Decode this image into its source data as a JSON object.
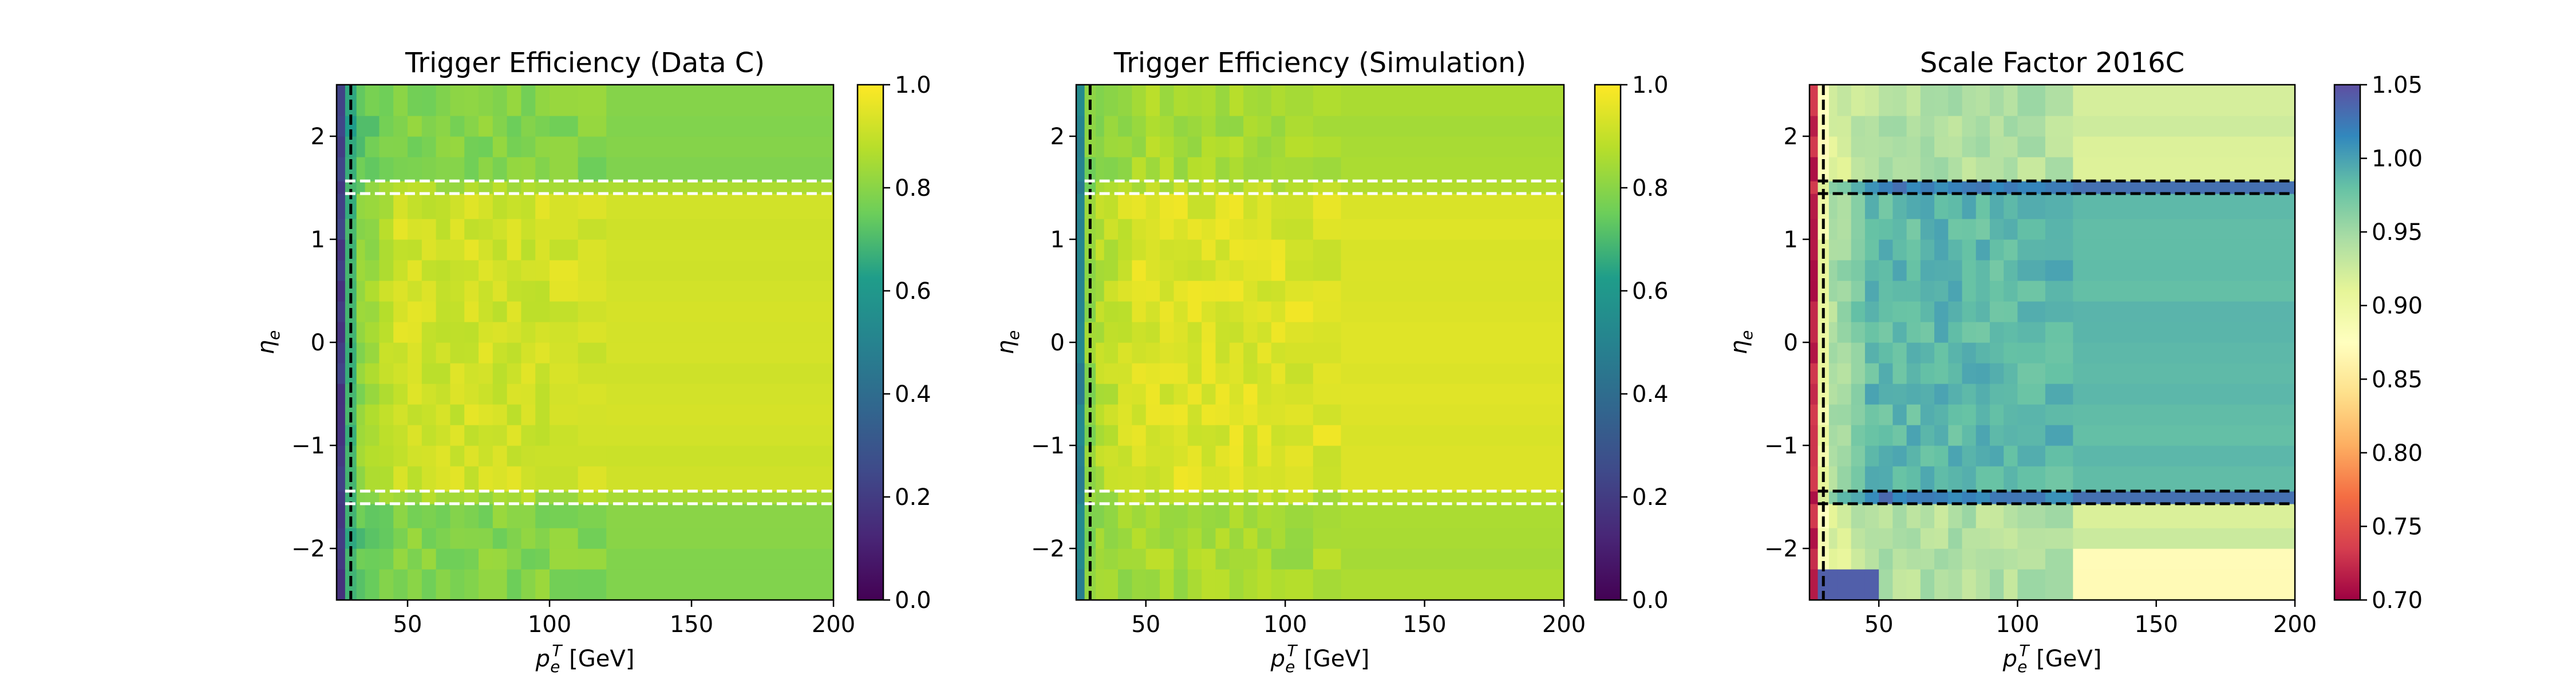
{
  "chart_data": [
    {
      "type": "heatmap",
      "title": "Trigger Efficiency (Data C)",
      "xlabel": "p_e^T [GeV]",
      "ylabel": "η_e",
      "xlim": [
        25,
        200
      ],
      "ylim": [
        -2.5,
        2.5
      ],
      "x_ticks": [
        "50",
        "100",
        "150",
        "200"
      ],
      "y_ticks": [
        "−2",
        "−1",
        "0",
        "1",
        "2"
      ],
      "colormap": "viridis",
      "colorbar": {
        "range": [
          0.0,
          1.0
        ],
        "ticks": [
          "0.0",
          "0.2",
          "0.4",
          "0.6",
          "0.8",
          "1.0"
        ]
      },
      "x_bin_edges": [
        25,
        28,
        32,
        35,
        40,
        45,
        50,
        55,
        60,
        65,
        70,
        75,
        80,
        85,
        90,
        95,
        100,
        110,
        120,
        200
      ],
      "eta_bin_edges": [
        -2.5,
        -2.2,
        -2.0,
        -1.8,
        -1.566,
        -1.444,
        -1.2,
        -1.0,
        -0.8,
        -0.6,
        -0.4,
        -0.2,
        0.0,
        0.2,
        0.4,
        0.6,
        0.8,
        1.0,
        1.2,
        1.444,
        1.566,
        1.8,
        2.0,
        2.2,
        2.5
      ],
      "region_efficiency": {
        "low_pt_column": 0.2,
        "turn_on": 0.6,
        "endcap": 0.79,
        "gap": 0.85,
        "barrel": 0.92
      },
      "dashed_lines": {
        "x": [
          30
        ],
        "eta": [
          -1.566,
          -1.444,
          1.444,
          1.566
        ],
        "colors": [
          "#000000",
          "#ffffff"
        ]
      }
    },
    {
      "type": "heatmap",
      "title": "Trigger Efficiency (Simulation)",
      "xlabel": "p_e^T [GeV]",
      "ylabel": "η_e",
      "xlim": [
        25,
        200
      ],
      "ylim": [
        -2.5,
        2.5
      ],
      "x_ticks": [
        "50",
        "100",
        "150",
        "200"
      ],
      "y_ticks": [
        "−2",
        "−1",
        "0",
        "1",
        "2"
      ],
      "colormap": "viridis",
      "colorbar": {
        "range": [
          0.0,
          1.0
        ],
        "ticks": [
          "0.0",
          "0.2",
          "0.4",
          "0.6",
          "0.8",
          "1.0"
        ]
      },
      "x_bin_edges": [
        25,
        28,
        32,
        35,
        40,
        45,
        50,
        55,
        60,
        65,
        70,
        75,
        80,
        85,
        90,
        95,
        100,
        110,
        120,
        200
      ],
      "eta_bin_edges": [
        -2.5,
        -2.2,
        -2.0,
        -1.8,
        -1.566,
        -1.444,
        -1.2,
        -1.0,
        -0.8,
        -0.6,
        -0.4,
        -0.2,
        0.0,
        0.2,
        0.4,
        0.6,
        0.8,
        1.0,
        1.2,
        1.444,
        1.566,
        1.8,
        2.0,
        2.2,
        2.5
      ],
      "region_efficiency": {
        "low_pt_column": 0.5,
        "turn_on": 0.75,
        "endcap": 0.85,
        "gap": 0.88,
        "barrel": 0.94
      },
      "dashed_lines": {
        "x": [
          30
        ],
        "eta": [
          -1.566,
          -1.444,
          1.444,
          1.566
        ],
        "colors": [
          "#000000",
          "#ffffff"
        ]
      }
    },
    {
      "type": "heatmap",
      "title": "Scale Factor 2016C",
      "xlabel": "p_e^T [GeV]",
      "ylabel": "η_e",
      "xlim": [
        25,
        200
      ],
      "ylim": [
        -2.5,
        2.5
      ],
      "x_ticks": [
        "50",
        "100",
        "150",
        "200"
      ],
      "y_ticks": [
        "−2",
        "−1",
        "0",
        "1",
        "2"
      ],
      "colormap": "Spectral",
      "colorbar": {
        "range": [
          0.7,
          1.05
        ],
        "ticks": [
          "0.70",
          "0.75",
          "0.80",
          "0.85",
          "0.90",
          "0.95",
          "1.00",
          "1.05"
        ]
      },
      "x_bin_edges": [
        25,
        28,
        32,
        35,
        40,
        45,
        50,
        55,
        60,
        65,
        70,
        75,
        80,
        85,
        90,
        95,
        100,
        110,
        120,
        200
      ],
      "eta_bin_edges": [
        -2.5,
        -2.2,
        -2.0,
        -1.8,
        -1.566,
        -1.444,
        -1.2,
        -1.0,
        -0.8,
        -0.6,
        -0.4,
        -0.2,
        0.0,
        0.2,
        0.4,
        0.6,
        0.8,
        1.0,
        1.2,
        1.444,
        1.566,
        1.8,
        2.0,
        2.2,
        2.5
      ],
      "region_scale_factor": {
        "low_pt_column": 0.72,
        "turn_on": 0.86,
        "endcap": 0.94,
        "gap": 1.02,
        "barrel": 0.985
      },
      "dashed_lines": {
        "x": [
          30
        ],
        "eta": [
          -1.566,
          -1.444,
          1.444,
          1.566
        ],
        "colors": [
          "#000000"
        ]
      }
    }
  ]
}
